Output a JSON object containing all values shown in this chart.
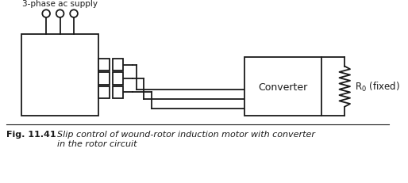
{
  "title": "Fig. 11.41",
  "supply_label": "3-phase ac supply",
  "converter_label": "Converter",
  "resistor_label": "R$_0$ (fixed)",
  "bg_color": "#ffffff",
  "line_color": "#1a1a1a",
  "fig_width": 5.14,
  "fig_height": 2.32
}
